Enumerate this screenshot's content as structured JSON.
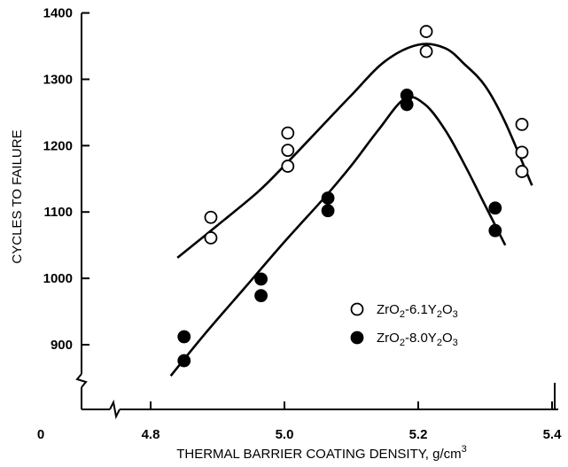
{
  "chart_data": {
    "type": "scatter",
    "xlabel": "THERMAL BARRIER COATING DENSITY, g/cm",
    "xlabel_sup": "3",
    "ylabel": "CYCLES TO FAILURE",
    "xlim": [
      4.7,
      5.4
    ],
    "ylim": [
      850,
      1400
    ],
    "x_ticks": [
      4.8,
      5.0,
      5.2,
      5.4
    ],
    "x_tick_labels": [
      "4.8",
      "5.0",
      "5.2",
      "5.4"
    ],
    "x_origin_label": "0",
    "y_ticks": [
      900,
      1000,
      1100,
      1200,
      1300,
      1400
    ],
    "y_tick_labels": [
      "900",
      "1000",
      "1100",
      "1200",
      "1300",
      "1400"
    ],
    "axis_break": true,
    "grid": false,
    "legend_position": "center-right",
    "series": [
      {
        "name": "ZrO2-6.1Y2O3",
        "legend_parts": [
          [
            "ZrO",
            false
          ],
          [
            "2",
            true
          ],
          [
            "-6.1Y",
            false
          ],
          [
            "2",
            true
          ],
          [
            "O",
            false
          ],
          [
            "3",
            true
          ]
        ],
        "marker": "open-circle",
        "points": [
          [
            4.89,
            1092
          ],
          [
            4.89,
            1061
          ],
          [
            5.005,
            1219
          ],
          [
            5.005,
            1193
          ],
          [
            5.005,
            1169
          ],
          [
            5.212,
            1372
          ],
          [
            5.212,
            1342
          ],
          [
            5.355,
            1232
          ],
          [
            5.355,
            1190
          ],
          [
            5.355,
            1161
          ]
        ],
        "fit_curve": [
          [
            4.84,
            1031
          ],
          [
            4.9,
            1080
          ],
          [
            4.96,
            1130
          ],
          [
            5.0,
            1170
          ],
          [
            5.05,
            1223
          ],
          [
            5.1,
            1276
          ],
          [
            5.15,
            1327
          ],
          [
            5.2,
            1352
          ],
          [
            5.24,
            1347
          ],
          [
            5.27,
            1322
          ],
          [
            5.3,
            1290
          ],
          [
            5.33,
            1235
          ],
          [
            5.37,
            1140
          ]
        ]
      },
      {
        "name": "ZrO2-8.0Y2O3",
        "legend_parts": [
          [
            "ZrO",
            false
          ],
          [
            "2",
            true
          ],
          [
            "-8.0Y",
            false
          ],
          [
            "2",
            true
          ],
          [
            "O",
            false
          ],
          [
            "3",
            true
          ]
        ],
        "marker": "filled-circle",
        "points": [
          [
            4.85,
            912
          ],
          [
            4.85,
            876
          ],
          [
            4.965,
            999
          ],
          [
            4.965,
            974
          ],
          [
            5.065,
            1121
          ],
          [
            5.065,
            1102
          ],
          [
            5.183,
            1276
          ],
          [
            5.183,
            1262
          ],
          [
            5.315,
            1106
          ],
          [
            5.315,
            1072
          ]
        ],
        "fit_curve": [
          [
            4.83,
            853
          ],
          [
            4.88,
            915
          ],
          [
            4.94,
            985
          ],
          [
            5.0,
            1055
          ],
          [
            5.06,
            1122
          ],
          [
            5.1,
            1170
          ],
          [
            5.14,
            1223
          ],
          [
            5.18,
            1271
          ],
          [
            5.21,
            1262
          ],
          [
            5.24,
            1224
          ],
          [
            5.27,
            1170
          ],
          [
            5.3,
            1110
          ],
          [
            5.33,
            1050
          ]
        ]
      }
    ]
  }
}
